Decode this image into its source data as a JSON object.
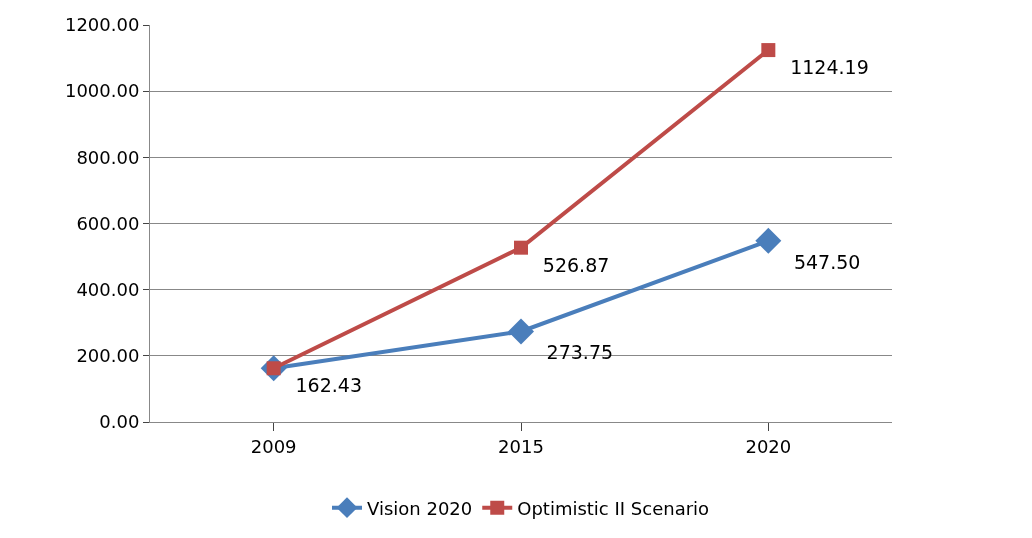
{
  "chart_data": {
    "type": "line",
    "categories": [
      "2009",
      "2015",
      "2020"
    ],
    "series": [
      {
        "name": "Vision 2020",
        "color": "#4a7ebb",
        "marker": "diamond",
        "values": [
          162.43,
          273.75,
          547.5
        ],
        "value_labels": [
          null,
          "273.75",
          "547.50"
        ]
      },
      {
        "name": "Optimistic II Scenario",
        "color": "#be4b48",
        "marker": "square",
        "values": [
          162.43,
          526.87,
          1124.19
        ],
        "value_labels": [
          "162.43",
          "526.87",
          "1124.19"
        ]
      }
    ],
    "ylim": [
      0,
      1200
    ],
    "yticks": [
      {
        "value": 0,
        "label": "0.00"
      },
      {
        "value": 200,
        "label": "200.00"
      },
      {
        "value": 400,
        "label": "400.00"
      },
      {
        "value": 600,
        "label": "600.00"
      },
      {
        "value": 800,
        "label": "800.00"
      },
      {
        "value": 1000,
        "label": "1000.00"
      },
      {
        "value": 1200,
        "label": "1200.00"
      }
    ],
    "grid": "y",
    "legend": "bottom",
    "line_style": "solid"
  }
}
